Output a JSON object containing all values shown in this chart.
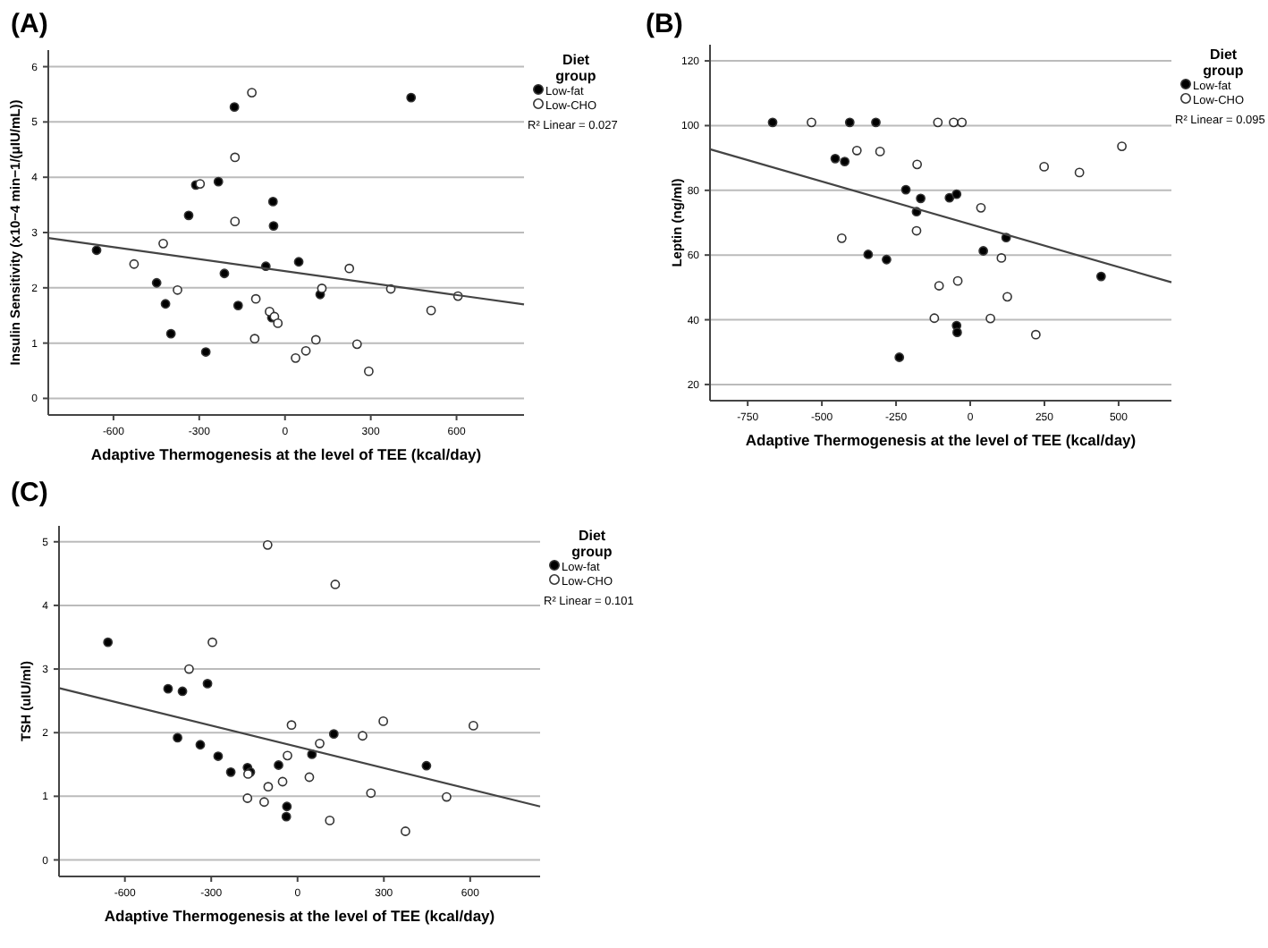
{
  "chart_data": [
    {
      "type": "scatter",
      "title": "(A)",
      "xlabel": "Adaptive Thermogenesis at the level of TEE (kcal/day)",
      "ylabel": "Insulin Sensitivity (x10−4 min−1/(μIU/mL))",
      "legend_title": "Diet group",
      "annotations": [
        "R² Linear = 0.027"
      ],
      "xlim": [
        -828,
        836
      ],
      "xticks": [
        -600,
        -300,
        0,
        300,
        600
      ],
      "ylim": [
        -0.3,
        6.3
      ],
      "yticks": [
        0,
        1,
        2,
        3,
        4,
        5,
        6
      ],
      "grid": "y",
      "legend": "right",
      "marker": "circle",
      "series": [
        {
          "name": "Low-fat",
          "color": "#000000",
          "x": [
            -659,
            -177,
            441,
            -312,
            -233,
            -337,
            -42,
            -40,
            -449,
            -212,
            -67,
            48,
            -418,
            -164,
            -399,
            -277,
            -46,
            123
          ],
          "values": [
            2.68,
            5.27,
            5.44,
            3.86,
            3.92,
            3.31,
            3.56,
            3.12,
            2.09,
            2.26,
            2.39,
            2.47,
            1.71,
            1.68,
            1.17,
            0.84,
            1.46,
            1.88
          ]
        },
        {
          "name": "Low-CHO",
          "color": "#ffffff",
          "x": [
            -116,
            -175,
            -297,
            -175,
            -426,
            -528,
            -376,
            -102,
            -54,
            -37,
            -25,
            -106,
            129,
            225,
            370,
            605,
            511,
            108,
            73,
            37,
            252,
            293
          ],
          "values": [
            5.53,
            4.36,
            3.88,
            3.2,
            2.8,
            2.43,
            1.96,
            1.8,
            1.57,
            1.48,
            1.36,
            1.08,
            1.99,
            2.35,
            1.98,
            1.85,
            1.59,
            1.06,
            0.86,
            0.73,
            0.98,
            0.49
          ]
        },
        {
          "type": "line",
          "marker": "none",
          "color": "#444444",
          "x": [
            -828,
            836
          ],
          "values": [
            2.9,
            1.7
          ]
        }
      ]
    },
    {
      "type": "scatter",
      "title": "(B)",
      "xlabel": "Adaptive Thermogenesis at the level of TEE (kcal/day)",
      "ylabel": "Leptin (ng/ml)",
      "legend_title": "Diet group",
      "annotations": [
        "R² Linear = 0.095"
      ],
      "xlim": [
        -877,
        678
      ],
      "xticks": [
        -750,
        -500,
        -250,
        0,
        250,
        500
      ],
      "ylim": [
        15,
        125
      ],
      "yticks": [
        20,
        40,
        60,
        80,
        100,
        120
      ],
      "grid": "y",
      "legend": "right",
      "marker": "circle",
      "series": [
        {
          "name": "Low-fat",
          "color": "#000000",
          "x": [
            -666,
            -406,
            -318,
            -455,
            -423,
            -217,
            -167,
            -70,
            -46,
            -181,
            121,
            -344,
            -282,
            44,
            -46,
            -44,
            -239,
            441
          ],
          "values": [
            101,
            101,
            101,
            89.8,
            88.9,
            80.2,
            77.5,
            77.7,
            78.8,
            73.4,
            65.4,
            60.2,
            58.6,
            61.3,
            38.2,
            36.1,
            28.4,
            53.4
          ]
        },
        {
          "name": "Low-CHO",
          "color": "#ffffff",
          "x": [
            -535,
            -109,
            -56,
            -28,
            -382,
            -304,
            -179,
            -181,
            -433,
            36,
            105,
            -105,
            -42,
            125,
            -121,
            68,
            221,
            249,
            368,
            511
          ],
          "values": [
            101,
            101,
            101,
            101,
            92.3,
            92,
            88,
            67.5,
            65.2,
            74.6,
            59.1,
            50.5,
            52,
            47.1,
            40.5,
            40.4,
            35.4,
            87.3,
            85.5,
            93.6
          ]
        },
        {
          "type": "line",
          "marker": "none",
          "color": "#444444",
          "x": [
            -877,
            678
          ],
          "values": [
            92.7,
            51.6
          ]
        }
      ]
    },
    {
      "type": "scatter",
      "title": "(C)",
      "xlabel": "Adaptive Thermogenesis at the level of TEE (kcal/day)",
      "ylabel": "TSH (uIU/ml)",
      "legend_title": "Diet group",
      "annotations": [
        "R² Linear = 0.101"
      ],
      "xlim": [
        -829,
        843
      ],
      "xticks": [
        -600,
        -300,
        0,
        300,
        600
      ],
      "ylim": [
        -0.26,
        5.25
      ],
      "yticks": [
        0,
        1,
        2,
        3,
        4,
        5
      ],
      "grid": "y",
      "legend": "right",
      "marker": "circle",
      "series": [
        {
          "name": "Low-fat",
          "color": "#000000",
          "x": [
            -659,
            -450,
            -400,
            -313,
            -417,
            -338,
            -276,
            -232,
            -174,
            -164,
            -66,
            -37,
            -39,
            50,
            126,
            448
          ],
          "values": [
            3.42,
            2.69,
            2.65,
            2.77,
            1.92,
            1.81,
            1.63,
            1.38,
            1.45,
            1.38,
            1.49,
            0.84,
            0.68,
            1.66,
            1.98,
            1.48
          ]
        },
        {
          "name": "Low-CHO",
          "color": "#ffffff",
          "x": [
            -104,
            131,
            -296,
            -377,
            -21,
            -35,
            77,
            41,
            -52,
            -102,
            -172,
            -174,
            -116,
            112,
            226,
            298,
            611,
            255,
            518,
            375
          ],
          "values": [
            4.95,
            4.33,
            3.42,
            3,
            2.12,
            1.64,
            1.83,
            1.3,
            1.23,
            1.15,
            1.35,
            0.97,
            0.91,
            0.62,
            1.95,
            2.18,
            2.11,
            1.05,
            0.99,
            0.45
          ]
        },
        {
          "type": "line",
          "marker": "none",
          "color": "#444444",
          "x": [
            -829,
            843
          ],
          "values": [
            2.7,
            0.84
          ]
        }
      ]
    }
  ]
}
